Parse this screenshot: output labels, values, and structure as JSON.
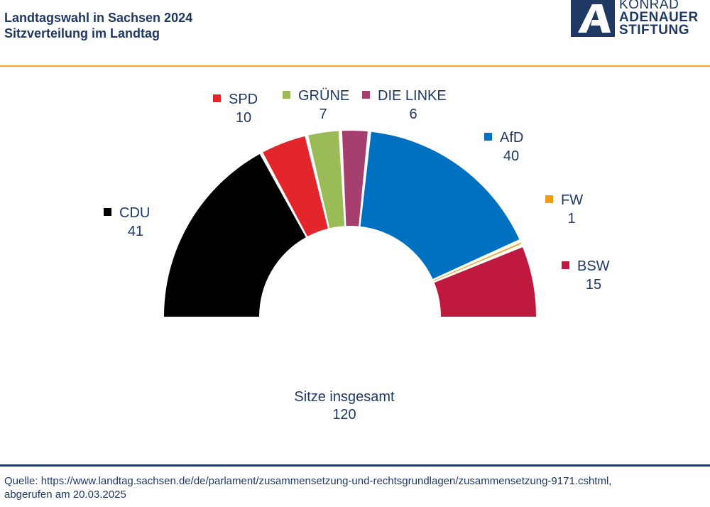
{
  "header": {
    "title": "Landtagswahl in Sachsen 2024",
    "subtitle": "Sitzverteilung im Landtag"
  },
  "logo": {
    "line1": "KONRAD",
    "line2": "ADENAUER",
    "line3": "STIFTUNG"
  },
  "chart_data": {
    "type": "pie",
    "subtype": "half-donut",
    "series": [
      {
        "name": "CDU",
        "value": 41,
        "color": "#000000"
      },
      {
        "name": "SPD",
        "value": 10,
        "color": "#e3262c"
      },
      {
        "name": "GRÜNE",
        "value": 7,
        "color": "#9bbb59"
      },
      {
        "name": "DIE LINKE",
        "value": 6,
        "color": "#a63f6e"
      },
      {
        "name": "AfD",
        "value": 40,
        "color": "#0070c0"
      },
      {
        "name": "FW",
        "value": 1,
        "color": "#f39c12"
      },
      {
        "name": "BSW",
        "value": 15,
        "color": "#c0193f"
      }
    ],
    "total_label": "Sitze insgesamt",
    "total_value": "120"
  },
  "footer": {
    "source_line1": "Quelle: https://www.landtag.sachsen.de/de/parlament/zusammensetzung-und-rechtsgrundlagen/zusammensetzung-9171.cshtml,",
    "source_line2": "abgerufen am 20.03.2025"
  }
}
